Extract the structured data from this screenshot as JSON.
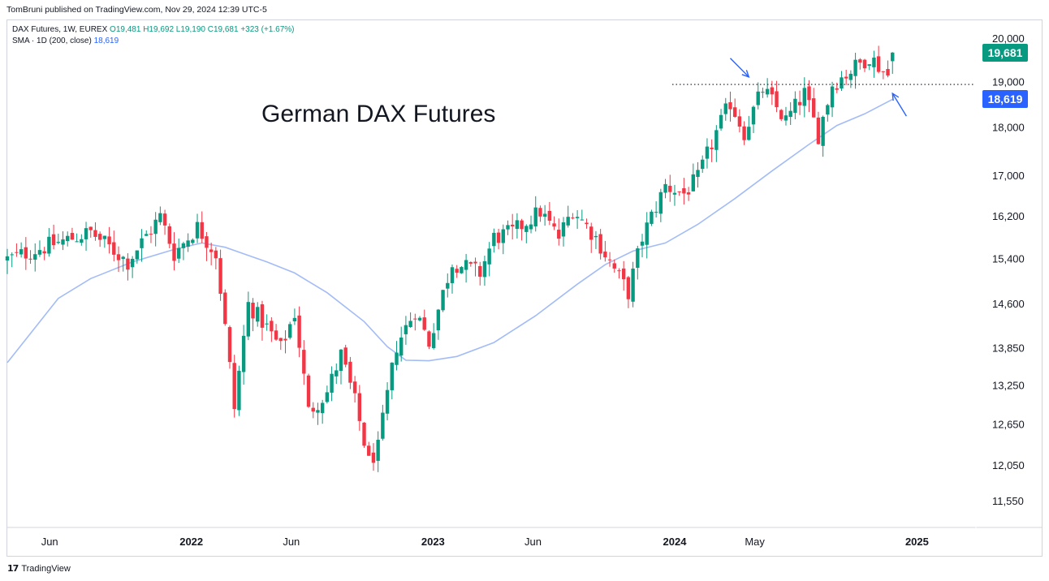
{
  "header": {
    "publisher": "TomBruni published on TradingView.com, Nov 29, 2024 12:39 UTC-5"
  },
  "legend": {
    "symbol": "DAX Futures, 1W, EUREX",
    "ohlc_o": "O19,481",
    "ohlc_h": "H19,692",
    "ohlc_l": "L19,190",
    "ohlc_c": "C19,681",
    "change": "+323 (+1.67%)",
    "sma_label": "SMA · 1D (200, close)",
    "sma_value": "18,619"
  },
  "annotation": "German DAX Futures",
  "footer": {
    "brand": "TradingView"
  },
  "colors": {
    "up": "#089981",
    "down": "#f23645",
    "sma": "#a3bcf7",
    "arrow": "#2962ff",
    "badge_price": "#089981",
    "badge_sma": "#2962ff"
  },
  "chart_data": {
    "type": "candlestick",
    "title": "German DAX Futures",
    "symbol": "DAX Futures, 1W, EUREX",
    "y_scale": "log",
    "ylim": [
      11200,
      20450
    ],
    "y_ticks": [
      20000,
      19000,
      18000,
      17000,
      16200,
      15400,
      14600,
      13850,
      13250,
      12650,
      12050,
      11550
    ],
    "y_tick_labels": [
      "20,000",
      "19,000",
      "18,000",
      "17,000",
      "16,200",
      "15,400",
      "14,600",
      "13,850",
      "13,250",
      "12,650",
      "12,050",
      "11,550"
    ],
    "xlim": [
      "2021-03-29",
      "2025-03-31"
    ],
    "x_ticks": [
      "2021-06-01",
      "2022-01-01",
      "2022-06-01",
      "2023-01-01",
      "2023-06-01",
      "2024-01-01",
      "2024-05-01",
      "2025-01-01"
    ],
    "x_tick_labels": [
      "Jun",
      "2022",
      "Jun",
      "2023",
      "Jun",
      "2024",
      "May",
      "2025"
    ],
    "last_price": 19681,
    "last_price_label": "19,681",
    "sma_last_label": "18,619",
    "resistance_level": 18950,
    "arrows": [
      {
        "from": [
          "2024-03-25",
          19550
        ],
        "to": [
          "2024-04-22",
          19120
        ]
      },
      {
        "from": [
          "2024-12-16",
          18250
        ],
        "to": [
          "2024-11-25",
          18750
        ]
      }
    ],
    "series": [
      {
        "name": "DAX Futures 1W",
        "anchors": [
          [
            "2021-03-29",
            15400
          ],
          [
            "2021-06-07",
            15680
          ],
          [
            "2021-08-02",
            15900
          ],
          [
            "2021-09-27",
            15350
          ],
          [
            "2021-11-15",
            16200
          ],
          [
            "2021-12-06",
            15500
          ],
          [
            "2022-01-10",
            16000
          ],
          [
            "2022-02-07",
            15500
          ],
          [
            "2022-03-07",
            12900
          ],
          [
            "2022-03-28",
            14600
          ],
          [
            "2022-04-25",
            14200
          ],
          [
            "2022-05-16",
            13850
          ],
          [
            "2022-06-06",
            14450
          ],
          [
            "2022-06-27",
            12850
          ],
          [
            "2022-07-25",
            13150
          ],
          [
            "2022-08-15",
            13750
          ],
          [
            "2022-09-05",
            13000
          ],
          [
            "2022-09-26",
            12100
          ],
          [
            "2022-10-10",
            12300
          ],
          [
            "2022-11-07",
            13900
          ],
          [
            "2022-12-05",
            14500
          ],
          [
            "2022-12-26",
            13950
          ],
          [
            "2023-01-30",
            15350
          ],
          [
            "2023-03-13",
            15150
          ],
          [
            "2023-04-03",
            15800
          ],
          [
            "2023-05-01",
            15900
          ],
          [
            "2023-06-12",
            16300
          ],
          [
            "2023-07-10",
            15800
          ],
          [
            "2023-07-31",
            16350
          ],
          [
            "2023-09-04",
            15800
          ],
          [
            "2023-09-25",
            15350
          ],
          [
            "2023-10-23",
            14800
          ],
          [
            "2023-11-13",
            15800
          ],
          [
            "2023-12-18",
            16800
          ],
          [
            "2024-01-15",
            16650
          ],
          [
            "2024-02-05",
            16950
          ],
          [
            "2024-03-04",
            17900
          ],
          [
            "2024-03-25",
            18550
          ],
          [
            "2024-04-15",
            17900
          ],
          [
            "2024-05-13",
            18850
          ],
          [
            "2024-06-17",
            18150
          ],
          [
            "2024-07-15",
            18750
          ],
          [
            "2024-08-05",
            17850
          ],
          [
            "2024-08-26",
            18950
          ],
          [
            "2024-09-30",
            19350
          ],
          [
            "2024-10-21",
            19600
          ],
          [
            "2024-11-18",
            19150
          ],
          [
            "2024-11-25",
            19681
          ]
        ]
      },
      {
        "name": "SMA · 1D (200, close)",
        "values": [
          [
            "2021-03-29",
            13620
          ],
          [
            "2021-05-03",
            14100
          ],
          [
            "2021-06-14",
            14700
          ],
          [
            "2021-08-02",
            15050
          ],
          [
            "2021-10-04",
            15350
          ],
          [
            "2021-12-06",
            15580
          ],
          [
            "2022-01-17",
            15700
          ],
          [
            "2022-02-21",
            15620
          ],
          [
            "2022-03-21",
            15500
          ],
          [
            "2022-04-25",
            15350
          ],
          [
            "2022-06-06",
            15150
          ],
          [
            "2022-07-25",
            14800
          ],
          [
            "2022-09-19",
            14300
          ],
          [
            "2022-10-24",
            13880
          ],
          [
            "2022-11-21",
            13660
          ],
          [
            "2022-12-26",
            13650
          ],
          [
            "2023-02-06",
            13720
          ],
          [
            "2023-04-03",
            13950
          ],
          [
            "2023-06-05",
            14400
          ],
          [
            "2023-08-07",
            14950
          ],
          [
            "2023-09-18",
            15300
          ],
          [
            "2023-10-30",
            15550
          ],
          [
            "2023-12-18",
            15700
          ],
          [
            "2024-02-05",
            16050
          ],
          [
            "2024-04-01",
            16550
          ],
          [
            "2024-05-27",
            17100
          ],
          [
            "2024-07-22",
            17650
          ],
          [
            "2024-09-02",
            18050
          ],
          [
            "2024-10-14",
            18300
          ],
          [
            "2024-11-25",
            18619
          ]
        ]
      }
    ]
  }
}
